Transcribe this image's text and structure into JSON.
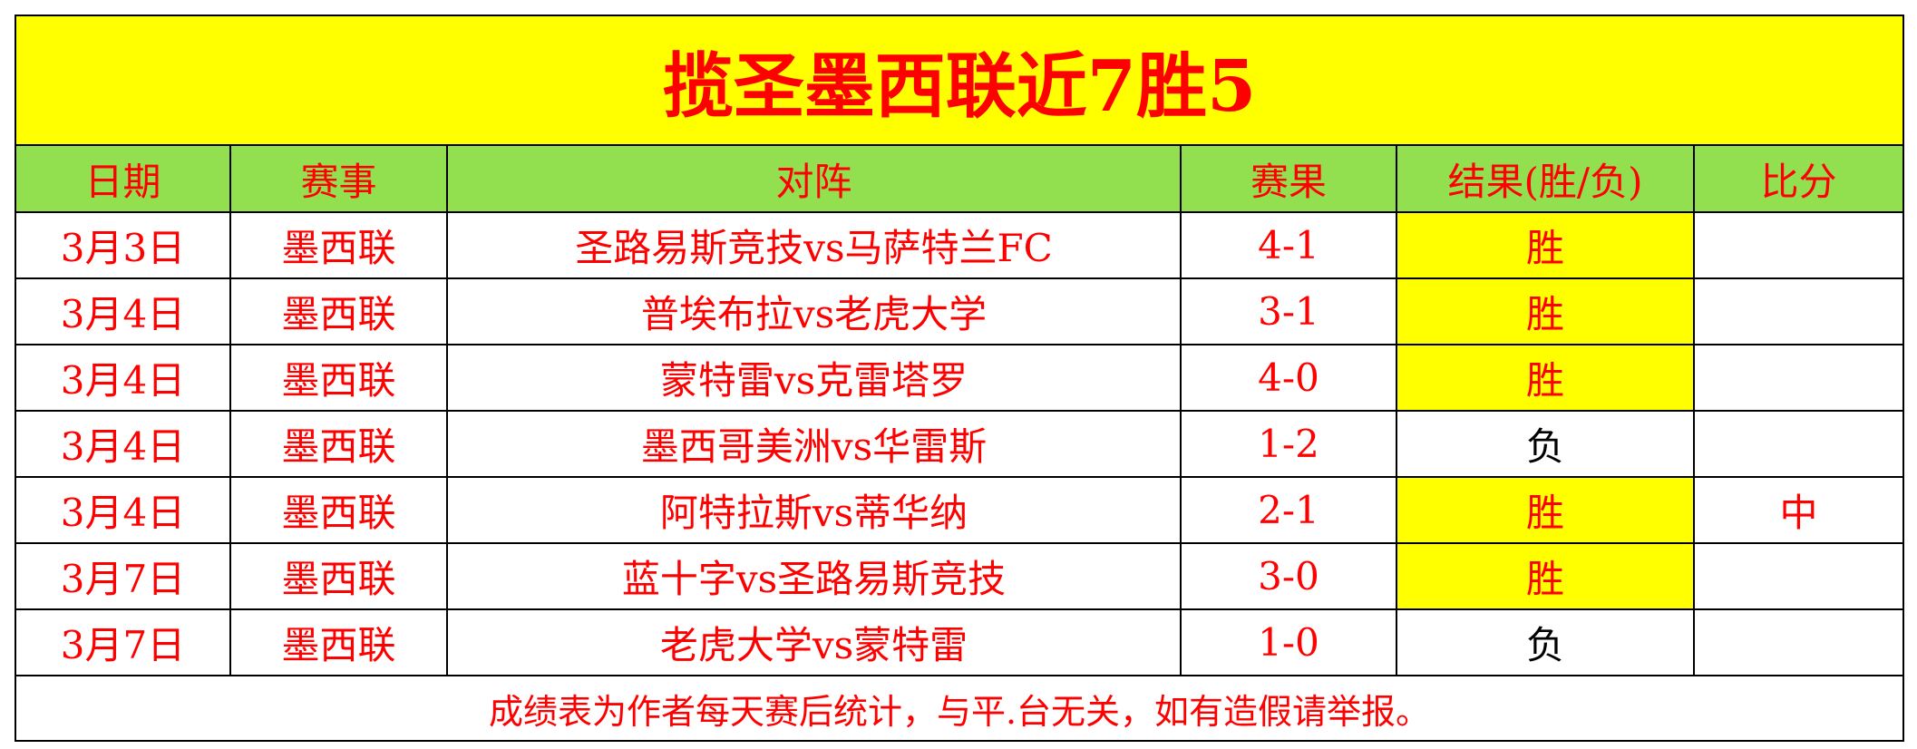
{
  "title": "揽圣墨西联近7胜5",
  "headers": [
    "日期",
    "赛事",
    "对阵",
    "赛果",
    "结果(胜/负)",
    "比分"
  ],
  "rows": [
    {
      "date": "3月3日",
      "league": "墨西联",
      "match": "圣路易斯竞技vs马萨特兰FC",
      "score": "4-1",
      "result": "胜",
      "pick": ""
    },
    {
      "date": "3月4日",
      "league": "墨西联",
      "match": "普埃布拉vs老虎大学",
      "score": "3-1",
      "result": "胜",
      "pick": ""
    },
    {
      "date": "3月4日",
      "league": "墨西联",
      "match": "蒙特雷vs克雷塔罗",
      "score": "4-0",
      "result": "胜",
      "pick": ""
    },
    {
      "date": "3月4日",
      "league": "墨西联",
      "match": "墨西哥美洲vs华雷斯",
      "score": "1-2",
      "result": "负",
      "pick": ""
    },
    {
      "date": "3月4日",
      "league": "墨西联",
      "match": "阿特拉斯vs蒂华纳",
      "score": "2-1",
      "result": "胜",
      "pick": "中"
    },
    {
      "date": "3月7日",
      "league": "墨西联",
      "match": "蓝十字vs圣路易斯竞技",
      "score": "3-0",
      "result": "胜",
      "pick": ""
    },
    {
      "date": "3月7日",
      "league": "墨西联",
      "match": "老虎大学vs蒙特雷",
      "score": "1-0",
      "result": "负",
      "pick": ""
    }
  ],
  "footer": "成绩表为作者每天赛后统计，与平.台无关，如有造假请举报。",
  "colors": {
    "title_bg": "#ffff00",
    "header_bg": "#92e050",
    "text": "#ff0000",
    "win_bg": "#ffff00",
    "loss_text": "#000000"
  }
}
